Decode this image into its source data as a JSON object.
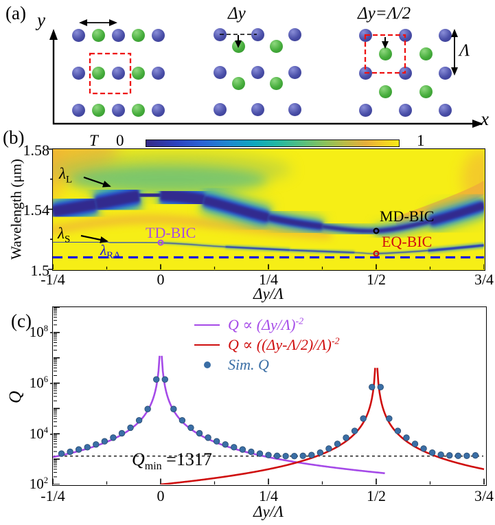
{
  "panel_a": {
    "label": "(a)",
    "y_axis_label": "y",
    "x_axis_label": "x",
    "mid_label": "Δy",
    "right_label": "Δy=Λ/2",
    "period_label": "Λ",
    "lattices": [
      {
        "name": "aligned-chain",
        "dot_cols": [
          114,
          143,
          172,
          201,
          230
        ],
        "dot_rows": [
          51,
          106,
          160
        ],
        "pattern": [
          "blue",
          "green",
          "blue",
          "green",
          "blue"
        ]
      },
      {
        "name": "shifted-by-dy",
        "blue_cols": [
          320,
          375,
          429
        ],
        "blue_rows": [
          50,
          105,
          159
        ],
        "green_cols": [
          347,
          402
        ],
        "green_rows": [
          67,
          121
        ]
      },
      {
        "name": "half-period-shift",
        "blue_cols": [
          532,
          590,
          648
        ],
        "blue_rows": [
          51,
          106,
          160
        ],
        "green_cols": [
          561,
          620
        ],
        "green_rows": [
          78,
          133
        ]
      }
    ]
  },
  "panel_b": {
    "label": "(b)",
    "colorbar": {
      "label": "T",
      "min": "0",
      "max": "1"
    },
    "ylabel": "Wavelength (μm)",
    "y_ticks": [
      "1.58",
      "1.54",
      "1.5"
    ],
    "x_ticks": [
      "-1/4",
      "0",
      "1/4",
      "1/2",
      "3/4"
    ],
    "xlabel": "Δy/Λ",
    "annotations": {
      "lambda_L": {
        "sym": "λ",
        "sub": "L"
      },
      "lambda_S": {
        "sym": "λ",
        "sub": "S"
      },
      "lambda_RA": {
        "sym": "λ",
        "sub": "RA"
      },
      "td_bic": "TD-BIC",
      "md_bic": "MD-BIC",
      "eq_bic": "EQ-BIC"
    }
  },
  "panel_c": {
    "label": "(c)",
    "ylabel": "Q",
    "y_ticks": [
      {
        "base": "10",
        "exp": "8"
      },
      {
        "base": "10",
        "exp": "6"
      },
      {
        "base": "10",
        "exp": "4"
      },
      {
        "base": "10",
        "exp": "2"
      }
    ],
    "x_ticks": [
      "-1/4",
      "0",
      "1/4",
      "1/2",
      "3/4"
    ],
    "xlabel": "Δy/Λ",
    "legend": [
      {
        "prefix": "Q ∝ (Δy/Λ)",
        "exp": "-2",
        "color": "#a54ae8",
        "type": "line"
      },
      {
        "prefix": "Q ∝ ((Δy-Λ/2)/Λ)",
        "exp": "-2",
        "color": "#cf0e0e",
        "type": "line"
      },
      {
        "prefix": "Sim. Q",
        "exp": "",
        "color": "#3a6ea5",
        "type": "dot"
      }
    ],
    "qmin": {
      "q": "Q",
      "sub": "min",
      "value": " =1317"
    }
  },
  "colors": {
    "heatmap_yellow": "#f6ee16",
    "purple": "#a54ae8",
    "red": "#cf0e0e",
    "sim_blue": "#3a6ea5",
    "sim_blue_edge": "#27496e",
    "lambda_ra_blue": "#1515dd",
    "td_circle": "#b050e0",
    "md_circle": "#000000",
    "eq_circle": "#d01010",
    "red_dash": "#ee1111"
  },
  "chart_data": [
    {
      "type": "heatmap",
      "title": "Transmission map vs lattice shift",
      "xlabel": "Δy/Λ",
      "ylabel": "Wavelength (μm)",
      "xlim": [
        -0.25,
        0.75
      ],
      "ylim": [
        1.5,
        1.58
      ],
      "x_tick_labels": [
        "-1/4",
        "0",
        "1/4",
        "1/2",
        "3/4"
      ],
      "y_tick_values": [
        1.5,
        1.54,
        1.58
      ],
      "colorbar": {
        "label": "T",
        "range": [
          0,
          1
        ],
        "colormap": "parula"
      },
      "lambda_RA": 1.508,
      "bands": [
        {
          "name": "lambda_L (MD) resonance",
          "x": [
            -0.25,
            -0.15,
            -0.05,
            0,
            0.1,
            0.25,
            0.375,
            0.5,
            0.625,
            0.75
          ],
          "wl": [
            1.5385,
            1.5435,
            1.549,
            1.5495,
            1.546,
            1.5345,
            1.5285,
            1.5256,
            1.532,
            1.5425
          ],
          "w": [
            15,
            16,
            17,
            17,
            15,
            10,
            6,
            2.5,
            7,
            15
          ]
        },
        {
          "name": "lambda_S resonance",
          "x": [
            -0.25,
            -0.12,
            0,
            0.15,
            0.3,
            0.45,
            0.5,
            0.62,
            0.75
          ],
          "wl": [
            1.518,
            1.5179,
            1.5177,
            1.515,
            1.5128,
            1.5112,
            1.5105,
            1.5125,
            1.516
          ],
          "w": [
            2.6,
            2.2,
            0.3,
            2.4,
            2.6,
            1.6,
            0.3,
            2.6,
            4.5
          ]
        }
      ],
      "bic_points": [
        {
          "label": "TD-BIC",
          "x": 0.0,
          "wavelength": 1.5178,
          "color": "#b050e0"
        },
        {
          "label": "MD-BIC",
          "x": 0.5,
          "wavelength": 1.5256,
          "color": "#000000"
        },
        {
          "label": "EQ-BIC",
          "x": 0.5,
          "wavelength": 1.5105,
          "color": "#d01010"
        }
      ]
    },
    {
      "type": "line+scatter",
      "xlabel": "Δy/Λ",
      "ylabel": "Q",
      "xlim": [
        -0.25,
        0.75
      ],
      "ylim_log10": [
        2,
        9
      ],
      "x_tick_values": [
        -0.25,
        0,
        0.25,
        0.5,
        0.75
      ],
      "x_minor_ticks": [
        -0.125,
        0.125,
        0.375,
        0.625
      ],
      "qmin_line": 1317,
      "series": [
        {
          "name": "Q ∝ (Δy/Λ)^-2",
          "kind": "line",
          "color": "#a54ae8",
          "formula": "C/x^2",
          "C": 75,
          "x_range": [
            -0.25,
            0.52
          ]
        },
        {
          "name": "Q ∝ ((Δy-Λ/2)/Λ)^-2",
          "kind": "line",
          "color": "#cf0e0e",
          "formula": "C/(x-0.5)^2",
          "C": 25,
          "x_range": [
            0.0,
            0.75
          ]
        },
        {
          "name": "Sim. Q",
          "kind": "scatter",
          "color": "#3a6ea5",
          "x": [
            -0.23,
            -0.21,
            -0.19,
            -0.17,
            -0.15,
            -0.13,
            -0.11,
            -0.09,
            -0.07,
            -0.05,
            -0.03,
            -0.01,
            0.01,
            0.03,
            0.05,
            0.07,
            0.09,
            0.11,
            0.13,
            0.15,
            0.17,
            0.19,
            0.21,
            0.23,
            0.25,
            0.27,
            0.29,
            0.31,
            0.33,
            0.35,
            0.37,
            0.39,
            0.41,
            0.43,
            0.45,
            0.47,
            0.49,
            0.51,
            0.53,
            0.55,
            0.57,
            0.59,
            0.61,
            0.63,
            0.65,
            0.67,
            0.69,
            0.71,
            0.73
          ],
          "q": [
            1650,
            1950,
            2400,
            2950,
            3800,
            5050,
            7050,
            10500,
            17400,
            34000,
            95000,
            1400000,
            1400000,
            95000,
            34000,
            17400,
            10500,
            7050,
            5050,
            3800,
            2950,
            2400,
            1950,
            1650,
            1450,
            1350,
            1320,
            1320,
            1350,
            1450,
            1800,
            2600,
            4000,
            7000,
            13000,
            40000,
            700000,
            700000,
            40000,
            13000,
            7000,
            4000,
            2600,
            1800,
            1500,
            1400,
            1350,
            1350,
            1400
          ]
        }
      ]
    }
  ]
}
